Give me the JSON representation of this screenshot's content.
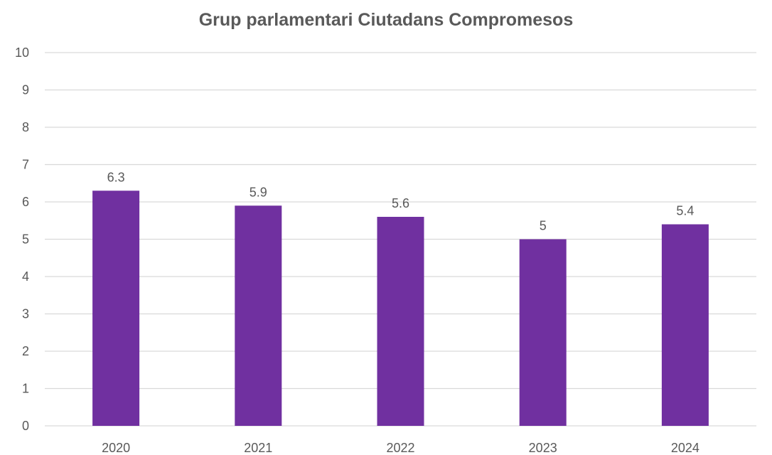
{
  "chart_data": {
    "type": "bar",
    "title": "Grup parlamentari Ciutadans Compromesos",
    "categories": [
      "2020",
      "2021",
      "2022",
      "2023",
      "2024"
    ],
    "values": [
      6.3,
      5.9,
      5.6,
      5,
      5.4
    ],
    "data_labels": [
      "6.3",
      "5.9",
      "5.6",
      "5",
      "5.4"
    ],
    "ylim": [
      0,
      10
    ],
    "yticks": [
      0,
      1,
      2,
      3,
      4,
      5,
      6,
      7,
      8,
      9,
      10
    ],
    "grid": true,
    "legend": false,
    "bar_color": "#7030a0",
    "grid_color": "#d9d9d9",
    "text_color": "#595959"
  }
}
